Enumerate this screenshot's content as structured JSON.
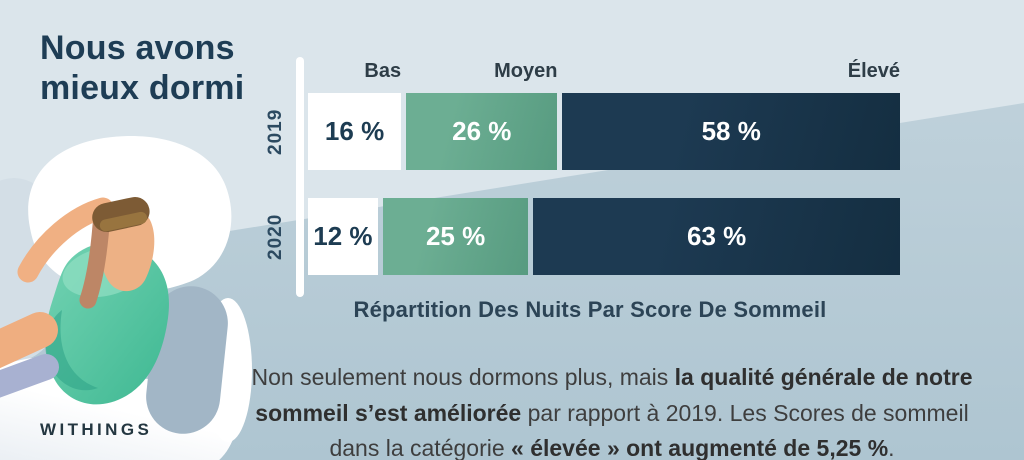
{
  "title": {
    "line1": "Nous avons",
    "line2": "mieux dormi"
  },
  "logo": "WITHINGS",
  "chart_data": {
    "type": "bar",
    "variant": "horizontal-stacked-percentage",
    "title": "Répartition Des Nuits Par Score De Sommeil",
    "categories": [
      "Bas",
      "Moyen",
      "Élevé"
    ],
    "series": [
      {
        "name": "2019",
        "values": [
          16,
          26,
          58
        ],
        "labels": [
          "16 %",
          "26 %",
          "58 %"
        ]
      },
      {
        "name": "2020",
        "values": [
          12,
          25,
          63
        ],
        "labels": [
          "12 %",
          "25 %",
          "63 %"
        ]
      }
    ],
    "xlim": [
      0,
      100
    ],
    "grid": false,
    "legend_position": "top",
    "segment_colors": {
      "bas": "#ffffff",
      "moyen": "#5da287",
      "eleve": "#152f42"
    }
  },
  "body": {
    "parts": [
      {
        "text": "Non seulement nous dormons plus, mais ",
        "bold": false
      },
      {
        "text": "la qualité générale de notre sommeil s’est améliorée",
        "bold": true
      },
      {
        "text": " par rapport à 2019. Les Scores de sommeil dans la catégorie ",
        "bold": false
      },
      {
        "text": "« élevée » ont augmenté de 5,25 %",
        "bold": true
      },
      {
        "text": ".",
        "bold": false
      }
    ]
  },
  "theme": {
    "background": "#b5c9d4",
    "background_light": "#dbe5eb",
    "navy": "#152f42",
    "green": "#5da287",
    "title_navy": "#1e3d55",
    "body_gray": "#3e3e3e",
    "illustration_teal": "#4cc09d",
    "illustration_skin": "#efae80",
    "illustration_hair": "#7d5b35"
  }
}
